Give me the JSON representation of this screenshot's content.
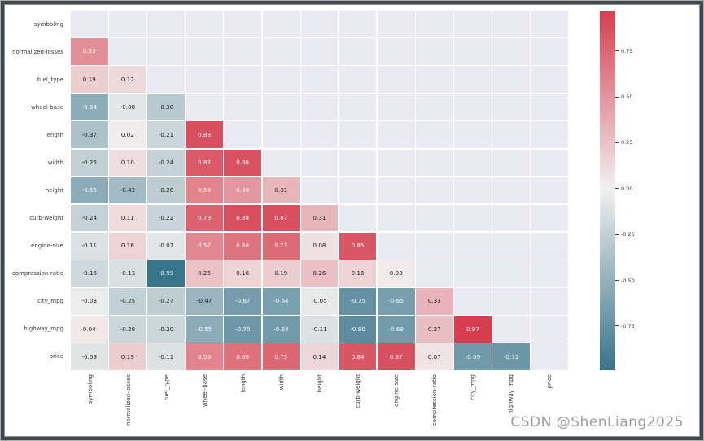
{
  "watermark": {
    "text": "CSDN @ShenLiang2025",
    "color": "#9e9e9e"
  },
  "frame": {
    "border_dark": "#42474b",
    "border_light": "#a9aeb1"
  },
  "chart_data": {
    "type": "heatmap",
    "subtype": "correlation-matrix-lower-triangle",
    "title": "",
    "xlabel": "",
    "ylabel": "",
    "mask": "upper-triangle-and-diagonal",
    "grid": true,
    "legend_position": "right-colorbar",
    "variables": [
      "symboling",
      "normalized-losses",
      "fuel_type",
      "wheel-base",
      "length",
      "width",
      "height",
      "curb-weight",
      "engine-size",
      "compression-ratio",
      "city_mpg",
      "highway_mpg",
      "price"
    ],
    "rows": [
      {
        "label": "symboling",
        "values": []
      },
      {
        "label": "normalized-losses",
        "values": [
          0.53
        ]
      },
      {
        "label": "fuel_type",
        "values": [
          0.19,
          0.12
        ]
      },
      {
        "label": "wheel-base",
        "values": [
          -0.54,
          -0.08,
          -0.3
        ]
      },
      {
        "label": "length",
        "values": [
          -0.37,
          0.02,
          -0.21,
          0.88
        ]
      },
      {
        "label": "width",
        "values": [
          -0.25,
          0.1,
          -0.24,
          0.82,
          0.86
        ]
      },
      {
        "label": "height",
        "values": [
          -0.55,
          -0.43,
          -0.28,
          0.59,
          0.49,
          0.31
        ]
      },
      {
        "label": "curb-weight",
        "values": [
          -0.24,
          0.11,
          -0.22,
          0.78,
          0.88,
          0.87,
          0.31
        ]
      },
      {
        "label": "engine-size",
        "values": [
          -0.11,
          0.16,
          -0.07,
          0.57,
          0.68,
          0.73,
          0.08,
          0.85
        ]
      },
      {
        "label": "compression-ratio",
        "values": [
          -0.18,
          -0.13,
          -0.99,
          0.25,
          0.16,
          0.19,
          0.26,
          0.16,
          0.03
        ]
      },
      {
        "label": "city_mpg",
        "values": [
          -0.03,
          -0.25,
          -0.27,
          -0.47,
          -0.67,
          -0.64,
          -0.05,
          -0.75,
          -0.65,
          0.33
        ]
      },
      {
        "label": "highway_mpg",
        "values": [
          0.04,
          -0.2,
          -0.2,
          -0.55,
          -0.7,
          -0.68,
          -0.11,
          -0.8,
          -0.68,
          0.27,
          0.97
        ]
      },
      {
        "label": "price",
        "values": [
          -0.09,
          0.19,
          -0.11,
          0.59,
          0.69,
          0.75,
          0.14,
          0.84,
          0.87,
          0.07,
          -0.69,
          -0.71
        ]
      }
    ],
    "value_decimals": 2,
    "colorbar": {
      "tick_labels": [
        "0.75",
        "0.50",
        "0.25",
        "0.00",
        "-0.25",
        "-0.50",
        "-0.75"
      ],
      "tick_values": [
        0.75,
        0.5,
        0.25,
        0,
        -0.25,
        -0.5,
        -0.75
      ],
      "vmin": -0.99,
      "vmax": 0.97
    },
    "colors": {
      "positive_end": "#d63e50",
      "negative_end": "#38748a",
      "center": "#f1f0ef",
      "masked_cell": "#eaeaf2",
      "grid_line": "#ffffff",
      "dark_text": "#151515",
      "light_text": "#ffffff"
    }
  }
}
